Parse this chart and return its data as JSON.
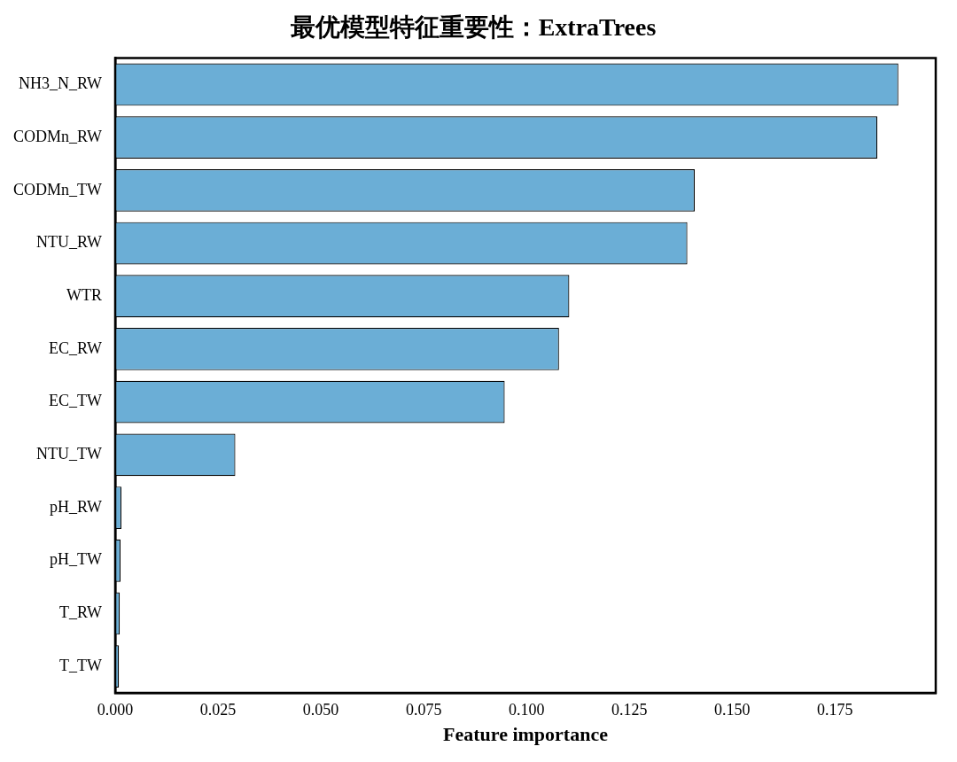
{
  "chart_data": {
    "type": "bar",
    "orientation": "horizontal",
    "title": "最优模型特征重要性：ExtraTrees",
    "xlabel": "Feature importance",
    "categories": [
      "NH3_N_RW",
      "CODMn_RW",
      "CODMn_TW",
      "NTU_RW",
      "WTR",
      "EC_RW",
      "EC_TW",
      "NTU_TW",
      "pH_RW",
      "pH_TW",
      "T_RW",
      "T_TW"
    ],
    "values": [
      0.1904,
      0.1853,
      0.1409,
      0.1391,
      0.1104,
      0.1079,
      0.0947,
      0.0292,
      0.0015,
      0.0013,
      0.0011,
      0.0009
    ],
    "color": "#6baed6",
    "xlim": [
      0,
      0.1995
    ],
    "xticks": [
      {
        "value": 0,
        "label": "0.000"
      },
      {
        "value": 0.025,
        "label": "0.025"
      },
      {
        "value": 0.05,
        "label": "0.050"
      },
      {
        "value": 0.075,
        "label": "0.075"
      },
      {
        "value": 0.1,
        "label": "0.100"
      },
      {
        "value": 0.125,
        "label": "0.125"
      },
      {
        "value": 0.15,
        "label": "0.150"
      },
      {
        "value": 0.175,
        "label": "0.175"
      }
    ],
    "grid": false,
    "legend": false
  }
}
